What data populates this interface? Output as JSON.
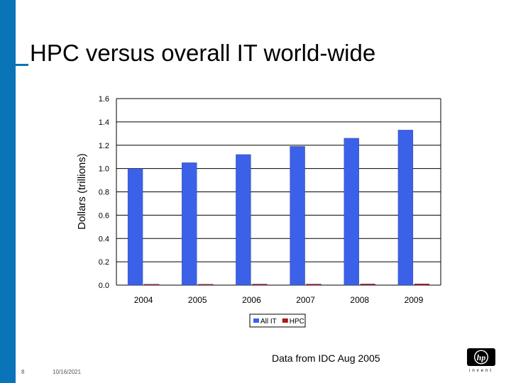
{
  "slide": {
    "title": "HPC versus overall IT world-wide",
    "source_note": "Data from IDC Aug 2005",
    "page_number": "8",
    "date": "10/16/2021",
    "accent_color": "#0a74b9",
    "logo": {
      "text": "hp",
      "tagline": "invent",
      "icon": "hp-logo"
    }
  },
  "chart_data": {
    "type": "bar",
    "title": "",
    "xlabel": "",
    "ylabel": "Dollars (trillions)",
    "categories": [
      "2004",
      "2005",
      "2006",
      "2007",
      "2008",
      "2009"
    ],
    "series": [
      {
        "name": "All IT",
        "color": "#3a61e8",
        "values": [
          1.0,
          1.05,
          1.12,
          1.19,
          1.26,
          1.33
        ]
      },
      {
        "name": "HPC",
        "color": "#b01818",
        "values": [
          0.008,
          0.008,
          0.009,
          0.009,
          0.01,
          0.011
        ]
      }
    ],
    "ylim": [
      0,
      1.6
    ],
    "yticks": [
      "0.0",
      "0.2",
      "0.4",
      "0.6",
      "0.8",
      "1.0",
      "1.2",
      "1.4",
      "1.6"
    ],
    "grid": true,
    "legend": "bottom"
  }
}
